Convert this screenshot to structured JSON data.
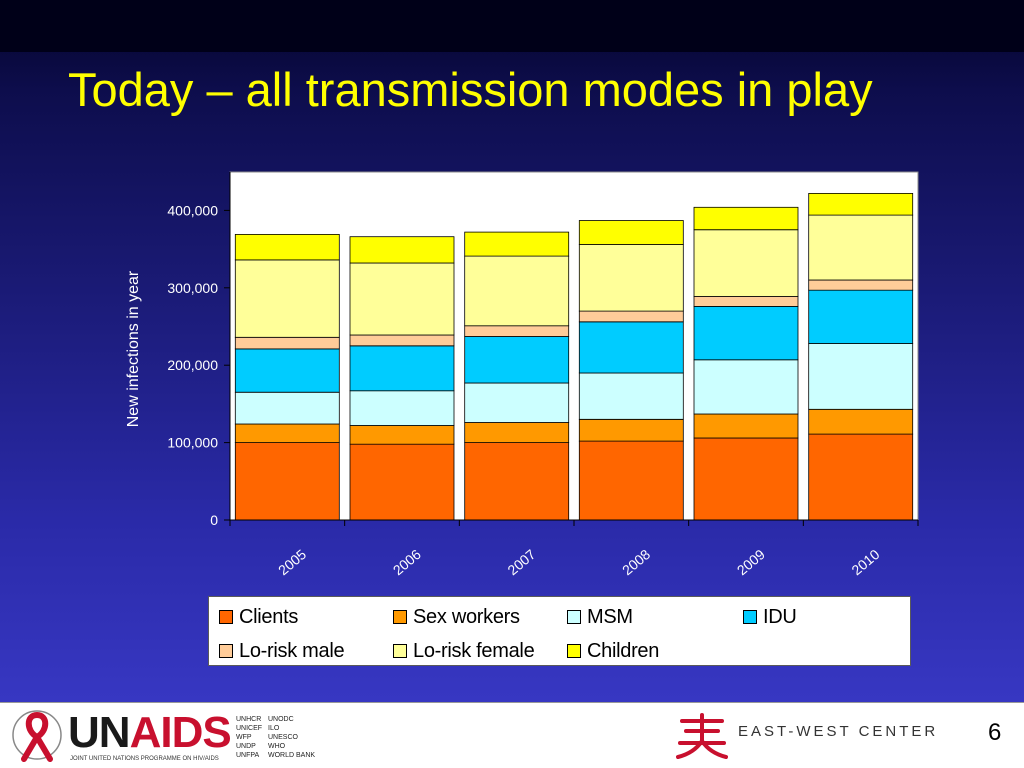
{
  "slide": {
    "title": "Today – all transmission modes in play",
    "number": "6"
  },
  "chart_data": {
    "type": "bar",
    "stacked": true,
    "categories": [
      "2005",
      "2006",
      "2007",
      "2008",
      "2009",
      "2010"
    ],
    "ylabel": "New infections in year",
    "xlabel": "",
    "ylim": [
      0,
      450000
    ],
    "yticks": [
      0,
      100000,
      200000,
      300000,
      400000
    ],
    "ytick_labels": [
      "0",
      "100,000",
      "200,000",
      "300,000",
      "400,000"
    ],
    "grid": false,
    "legend_position": "bottom",
    "series": [
      {
        "name": "Clients",
        "color": "#ff6600",
        "values": [
          100000,
          98000,
          100000,
          102000,
          106000,
          111000
        ]
      },
      {
        "name": "Sex workers",
        "color": "#ff9900",
        "values": [
          24000,
          24000,
          26000,
          28000,
          31000,
          32000
        ]
      },
      {
        "name": "MSM",
        "color": "#ccffff",
        "values": [
          41000,
          45000,
          51000,
          60000,
          70000,
          85000
        ]
      },
      {
        "name": "IDU",
        "color": "#00ccff",
        "values": [
          56000,
          58000,
          60000,
          66000,
          69000,
          69000
        ]
      },
      {
        "name": "Lo-risk male",
        "color": "#ffcc99",
        "values": [
          15000,
          14000,
          14000,
          14000,
          13000,
          13000
        ]
      },
      {
        "name": "Lo-risk female",
        "color": "#ffff99",
        "values": [
          100000,
          93000,
          90000,
          86000,
          86000,
          84000
        ]
      },
      {
        "name": "Children",
        "color": "#ffff00",
        "values": [
          33000,
          34000,
          31000,
          31000,
          29000,
          28000
        ]
      }
    ]
  },
  "footer": {
    "unaids_un": "UN",
    "unaids_aids": "AIDS",
    "unaids_tagline": "JOINT UNITED NATIONS PROGRAMME ON HIV/AIDS",
    "cosponsors_col1": [
      "UNHCR",
      "UNICEF",
      "WFP",
      "UNDP",
      "UNFPA"
    ],
    "cosponsors_col2": [
      "UNODC",
      "ILO",
      "UNESCO",
      "WHO",
      "WORLD BANK"
    ],
    "ewc_text": "EAST-WEST CENTER"
  }
}
